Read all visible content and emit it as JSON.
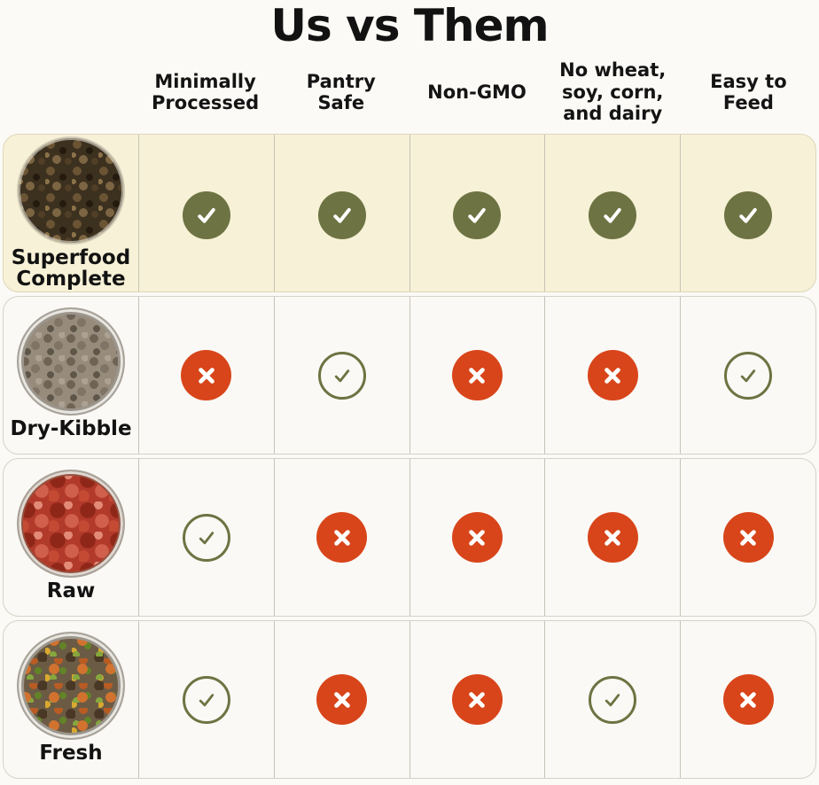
{
  "page_title": "Us vs Them",
  "chart_data": {
    "type": "table",
    "title": "Us vs Them",
    "columns": [
      "Minimally\nProcessed",
      "Pantry\nSafe",
      "Non-GMO",
      "No wheat,\nsoy, corn,\nand dairy",
      "Easy to\nFeed"
    ],
    "rows": [
      {
        "label": "Superfood\nComplete",
        "image": "superfood-complete-bowl-photo",
        "highlighted": true,
        "values": [
          "check-filled",
          "check-filled",
          "check-filled",
          "check-filled",
          "check-filled"
        ]
      },
      {
        "label": "Dry-Kibble",
        "image": "dry-kibble-bowl-photo",
        "highlighted": false,
        "values": [
          "x-filled",
          "check-outline",
          "x-filled",
          "x-filled",
          "check-outline"
        ]
      },
      {
        "label": "Raw",
        "image": "raw-meat-bowl-photo",
        "highlighted": false,
        "values": [
          "check-outline",
          "x-filled",
          "x-filled",
          "x-filled",
          "x-filled"
        ]
      },
      {
        "label": "Fresh",
        "image": "fresh-food-bowl-photo",
        "highlighted": false,
        "values": [
          "check-outline",
          "x-filled",
          "x-filled",
          "check-outline",
          "x-filled"
        ]
      }
    ]
  },
  "colors": {
    "check_green": "#6d7342",
    "x_red": "#d8451a",
    "highlight_row_bg": "#f7f1d7",
    "row_bg": "#faf9f5",
    "page_bg": "#fbfaf6"
  }
}
